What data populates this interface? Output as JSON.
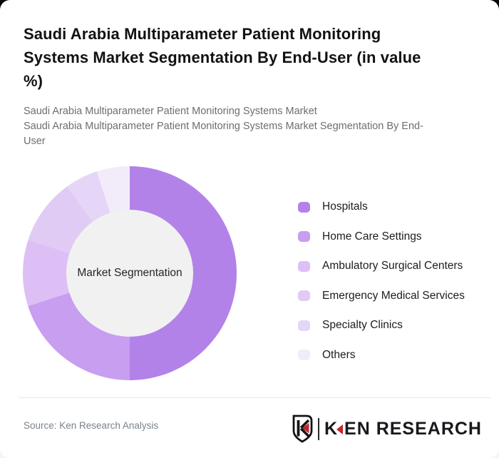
{
  "header": {
    "title": "Saudi Arabia Multiparameter Patient Monitoring\nSystems Market Segmentation By End-User (in value\n%)",
    "subtitle_line1": "Saudi Arabia Multiparameter Patient Monitoring Systems Market",
    "subtitle_line2": "Saudi Arabia Multiparameter Patient Monitoring Systems Market Segmentation By End-\nUser"
  },
  "chart_data": {
    "type": "pie",
    "variant": "donut",
    "title": "Saudi Arabia Multiparameter Patient Monitoring Systems Market Segmentation By End-User (in value %)",
    "center_label": "Market Segmentation",
    "categories": [
      "Hospitals",
      "Home Care Settings",
      "Ambulatory Surgical Centers",
      "Emergency Medical Services",
      "Specialty Clinics",
      "Others"
    ],
    "values": [
      50,
      20,
      10,
      10,
      5,
      5
    ],
    "unit": "%",
    "colors": [
      "#b382e9",
      "#c79ef0",
      "#ddbff5",
      "#e0cbf5",
      "#e5d5f7",
      "#f2ecfa"
    ],
    "start_angle_deg": 0,
    "legend_position": "right",
    "hole_color": "#f1f1f2",
    "data_labels_shown": false
  },
  "footer": {
    "source": "Source: Ken Research Analysis",
    "logo": {
      "shield_initial": "K",
      "wordmark_k": "K",
      "wordmark_rest": "EN RESEARCH",
      "accent_color": "#c5252c",
      "ink_color": "#17191d"
    }
  }
}
